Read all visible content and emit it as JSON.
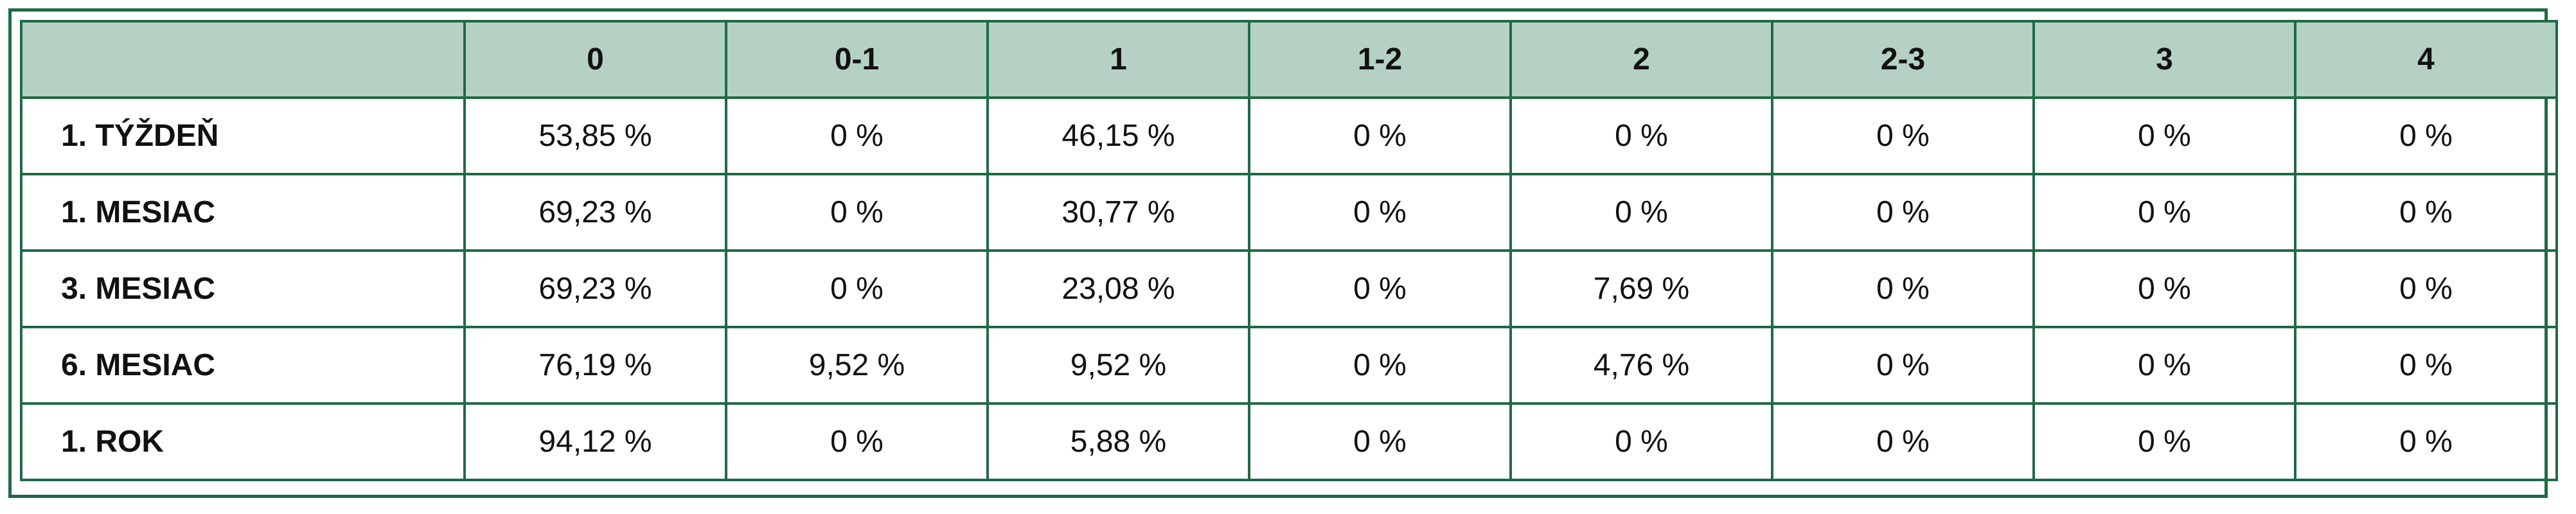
{
  "table": {
    "columns": [
      "0",
      "0-1",
      "1",
      "1-2",
      "2",
      "2-3",
      "3",
      "4"
    ],
    "rows": [
      {
        "label": "1. TÝŽDEŇ",
        "cells": [
          "53,85 %",
          "0 %",
          "46,15 %",
          "0 %",
          "0 %",
          "0 %",
          "0 %",
          "0 %"
        ]
      },
      {
        "label": "1. MESIAC",
        "cells": [
          "69,23 %",
          "0 %",
          "30,77 %",
          "0 %",
          "0 %",
          "0 %",
          "0 %",
          "0 %"
        ]
      },
      {
        "label": "3. MESIAC",
        "cells": [
          "69,23 %",
          "0 %",
          "23,08 %",
          "0 %",
          "7,69 %",
          "0 %",
          "0 %",
          "0 %"
        ]
      },
      {
        "label": "6. MESIAC",
        "cells": [
          "76,19 %",
          "9,52 %",
          "9,52 %",
          "0 %",
          "4,76 %",
          "0 %",
          "0 %",
          "0 %"
        ]
      },
      {
        "label": "1. ROK",
        "cells": [
          "94,12 %",
          "0 %",
          "5,88 %",
          "0 %",
          "0 %",
          "0 %",
          "0 %",
          "0 %"
        ]
      }
    ]
  }
}
